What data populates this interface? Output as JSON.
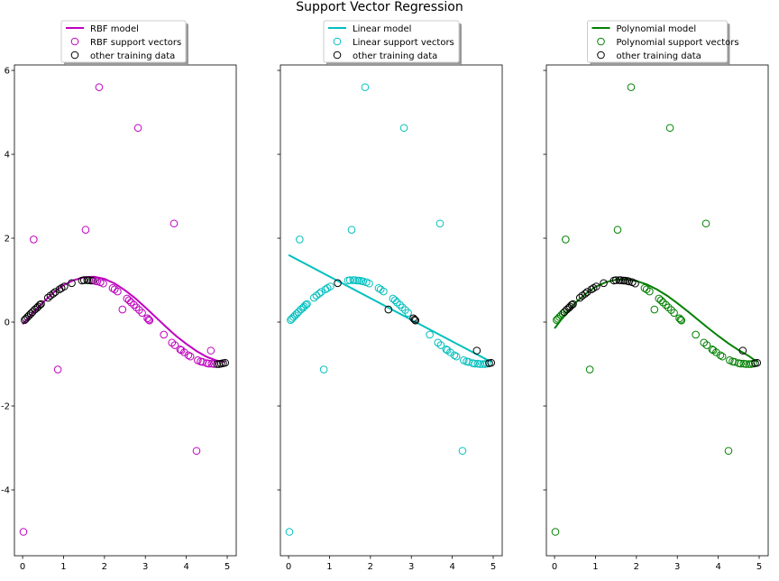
{
  "chart_data": {
    "type": "scatter",
    "title": "Support Vector Regression",
    "xlim": [
      -0.2,
      5.22
    ],
    "ylim": [
      -5.57,
      6.13
    ],
    "xticks": [
      0,
      1,
      2,
      3,
      4,
      5
    ],
    "yticks": [
      -4,
      -2,
      0,
      2,
      4,
      6
    ],
    "grid": false,
    "legend_placement": "upper-center-above",
    "points": [
      [
        0.02,
        -5.0
      ],
      [
        0.05,
        0.05
      ],
      [
        0.08,
        0.08
      ],
      [
        0.12,
        0.12
      ],
      [
        0.16,
        0.16
      ],
      [
        0.2,
        0.2
      ],
      [
        0.24,
        0.24
      ],
      [
        0.27,
        1.97
      ],
      [
        0.3,
        0.3
      ],
      [
        0.35,
        0.34
      ],
      [
        0.38,
        0.37
      ],
      [
        0.42,
        0.41
      ],
      [
        0.45,
        0.43
      ],
      [
        0.62,
        0.58
      ],
      [
        0.68,
        0.63
      ],
      [
        0.75,
        0.68
      ],
      [
        0.8,
        0.72
      ],
      [
        0.86,
        -1.13
      ],
      [
        0.9,
        0.78
      ],
      [
        0.95,
        0.81
      ],
      [
        1.02,
        0.85
      ],
      [
        1.2,
        0.93
      ],
      [
        1.45,
        0.99
      ],
      [
        1.5,
        1.0
      ],
      [
        1.54,
        2.2
      ],
      [
        1.58,
        1.0
      ],
      [
        1.62,
        1.0
      ],
      [
        1.68,
        0.99
      ],
      [
        1.72,
        0.99
      ],
      [
        1.78,
        0.98
      ],
      [
        1.82,
        0.97
      ],
      [
        1.87,
        5.6
      ],
      [
        1.9,
        0.95
      ],
      [
        1.97,
        0.92
      ],
      [
        2.2,
        0.81
      ],
      [
        2.25,
        0.78
      ],
      [
        2.32,
        0.73
      ],
      [
        2.44,
        0.3
      ],
      [
        2.55,
        0.56
      ],
      [
        2.6,
        0.52
      ],
      [
        2.65,
        0.47
      ],
      [
        2.72,
        0.41
      ],
      [
        2.78,
        0.35
      ],
      [
        2.82,
        4.63
      ],
      [
        2.85,
        0.29
      ],
      [
        2.92,
        0.22
      ],
      [
        3.05,
        0.09
      ],
      [
        3.08,
        0.06
      ],
      [
        3.1,
        0.04
      ],
      [
        3.45,
        -0.3
      ],
      [
        3.65,
        -0.49
      ],
      [
        3.7,
        2.35
      ],
      [
        3.72,
        -0.55
      ],
      [
        3.85,
        -0.65
      ],
      [
        3.88,
        -0.67
      ],
      [
        3.95,
        -0.72
      ],
      [
        4.05,
        -0.79
      ],
      [
        4.1,
        -0.82
      ],
      [
        4.25,
        -3.07
      ],
      [
        4.28,
        -0.91
      ],
      [
        4.35,
        -0.94
      ],
      [
        4.4,
        -0.95
      ],
      [
        4.5,
        -0.98
      ],
      [
        4.55,
        -0.99
      ],
      [
        4.6,
        -0.68
      ],
      [
        4.62,
        -0.99
      ],
      [
        4.68,
        -1.0
      ],
      [
        4.75,
        -1.0
      ],
      [
        4.8,
        -1.0
      ],
      [
        4.85,
        -0.99
      ],
      [
        4.9,
        -0.98
      ],
      [
        4.95,
        -0.97
      ]
    ],
    "panels": [
      {
        "model_label": "RBF model",
        "support_label": "RBF support vectors",
        "other_label": "other training data",
        "color": "#bf00bf",
        "model_x": [
          0,
          0.25,
          0.5,
          0.75,
          1,
          1.25,
          1.5,
          1.75,
          2,
          2.25,
          2.5,
          2.75,
          3,
          3.25,
          3.5,
          3.75,
          4,
          4.25,
          4.5,
          4.75,
          4.95
        ],
        "model_y": [
          -0.05,
          0.22,
          0.47,
          0.7,
          0.88,
          1.0,
          1.07,
          1.08,
          1.03,
          0.92,
          0.76,
          0.57,
          0.35,
          0.12,
          -0.11,
          -0.33,
          -0.52,
          -0.69,
          -0.83,
          -0.92,
          -0.95
        ]
      },
      {
        "model_label": "Linear model",
        "support_label": "Linear support vectors",
        "other_label": "other training data",
        "color": "#00bfbf",
        "model_x": [
          0,
          4.95
        ],
        "model_y": [
          1.6,
          -0.95
        ]
      },
      {
        "model_label": "Polynomial model",
        "support_label": "Polynomial support vectors",
        "other_label": "other training data",
        "color": "#008000",
        "model_x": [
          0,
          0.25,
          0.5,
          0.75,
          1,
          1.25,
          1.5,
          1.75,
          2,
          2.25,
          2.5,
          2.75,
          3,
          3.25,
          3.5,
          3.75,
          4,
          4.25,
          4.5,
          4.75,
          4.95
        ],
        "model_y": [
          -0.15,
          0.17,
          0.45,
          0.67,
          0.84,
          0.95,
          1.01,
          1.02,
          0.98,
          0.9,
          0.78,
          0.63,
          0.45,
          0.26,
          0.06,
          -0.14,
          -0.33,
          -0.51,
          -0.67,
          -0.81,
          -0.95
        ]
      }
    ]
  }
}
